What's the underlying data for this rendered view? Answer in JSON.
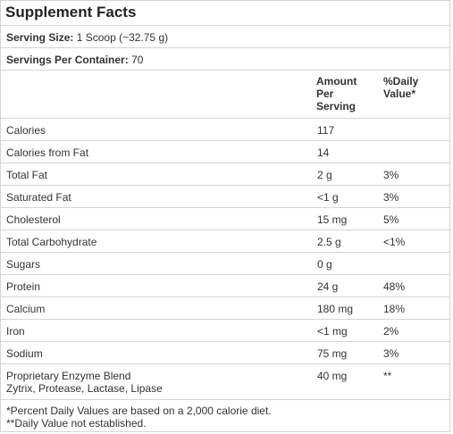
{
  "title": "Supplement Facts",
  "serving_size": {
    "label": "Serving Size:",
    "value": "1 Scoop (~32.75 g)"
  },
  "servings_per_container": {
    "label": "Servings Per Container:",
    "value": "70"
  },
  "headers": {
    "amount_line1": "Amount",
    "amount_line2": "Per",
    "amount_line3": "Serving",
    "dv_line1": "%Daily",
    "dv_line2": "Value*"
  },
  "rows": [
    {
      "name": "Calories",
      "amount": "117",
      "dv": ""
    },
    {
      "name": "Calories from Fat",
      "amount": "14",
      "dv": ""
    },
    {
      "name": "Total Fat",
      "amount": "2 g",
      "dv": "3%"
    },
    {
      "name": "Saturated Fat",
      "amount": "<1 g",
      "dv": "3%"
    },
    {
      "name": "Cholesterol",
      "amount": "15 mg",
      "dv": "5%"
    },
    {
      "name": "Total Carbohydrate",
      "amount": "2.5 g",
      "dv": "<1%"
    },
    {
      "name": "Sugars",
      "amount": "0 g",
      "dv": ""
    },
    {
      "name": "Protein",
      "amount": "24 g",
      "dv": "48%"
    },
    {
      "name": "Calcium",
      "amount": "180 mg",
      "dv": "18%"
    },
    {
      "name": "Iron",
      "amount": "<1 mg",
      "dv": "2%"
    },
    {
      "name": "Sodium",
      "amount": "75 mg",
      "dv": "3%"
    }
  ],
  "blend": {
    "name": "Proprietary Enzyme Blend",
    "sub": "Zytrix, Protease, Lactase, Lipase",
    "amount": "40 mg",
    "dv": "**"
  },
  "footnotes": {
    "percent": "*Percent Daily Values are based on a 2,000 calorie diet.",
    "not_established": "**Daily Value not established."
  }
}
